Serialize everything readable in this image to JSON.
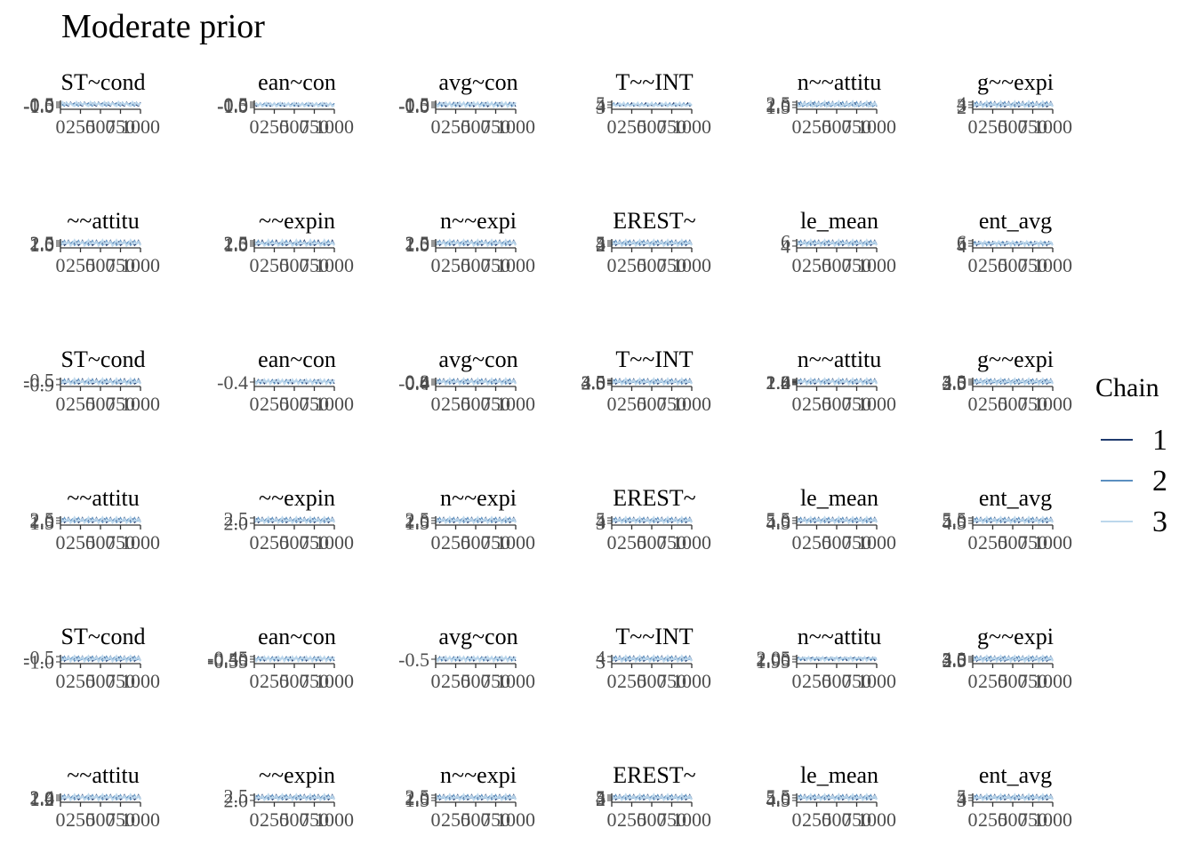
{
  "title": "Moderate prior",
  "legend": {
    "title": "Chain",
    "entries": [
      {
        "label": "1",
        "color": "#1f3a6e"
      },
      {
        "label": "2",
        "color": "#5b8fc0"
      },
      {
        "label": "3",
        "color": "#bcd7ec"
      }
    ]
  },
  "chart_data": {
    "type": "line",
    "kind": "trace plot facet grid",
    "nrow": 6,
    "ncol": 6,
    "x_tick_labels": [
      "0",
      "250",
      "500",
      "750",
      "1000"
    ],
    "panels": [
      {
        "title": "ST~cond",
        "y_ticks": [
          "-1.0",
          "-0.5",
          "0.0",
          "0.5"
        ],
        "y": [
          -0.62,
          -0.66,
          -0.6,
          -0.64,
          -0.7,
          -0.58,
          -0.63
        ]
      },
      {
        "title": "ean~con",
        "y_ticks": [
          "-1.0",
          "-0.5",
          "0.0",
          "0.5"
        ],
        "y": [
          -0.44,
          -0.5,
          -0.46,
          -0.4,
          -0.48,
          -0.43,
          -0.47
        ]
      },
      {
        "title": "avg~con",
        "y_ticks": [
          "-1.0",
          "-0.5",
          "0.0",
          "0.5"
        ],
        "y": [
          -0.58,
          -0.62,
          -0.55,
          -0.6,
          -0.57,
          -0.64,
          -0.59
        ]
      },
      {
        "title": "T~~INT",
        "y_ticks": [
          "3",
          "4",
          "5"
        ],
        "y": [
          3.9,
          4.2,
          4.0,
          4.4,
          3.8,
          4.1,
          4.0
        ]
      },
      {
        "title": "n~~attitu",
        "y_ticks": [
          "1.5",
          "2.0",
          "2.5"
        ],
        "y": [
          2.0,
          2.1,
          1.95,
          2.05,
          2.15,
          1.9,
          2.0
        ]
      },
      {
        "title": "g~~expi",
        "y_ticks": [
          "2",
          "3",
          "4"
        ],
        "y": [
          3.1,
          3.3,
          3.0,
          3.2,
          3.4,
          3.1,
          3.2
        ]
      },
      {
        "title": "~~attitu",
        "y_ticks": [
          "1.0",
          "1.5",
          "2.0",
          "2.5"
        ],
        "y": [
          1.8,
          1.9,
          1.75,
          1.85,
          1.95,
          1.8,
          1.9
        ]
      },
      {
        "title": "~~expin",
        "y_ticks": [
          "1.0",
          "1.5",
          "2.0",
          "2.5"
        ],
        "y": [
          1.7,
          1.8,
          1.65,
          1.75,
          1.9,
          1.7,
          1.8
        ]
      },
      {
        "title": "n~~expi",
        "y_ticks": [
          "1.0",
          "1.5",
          "2.0",
          "2.5"
        ],
        "y": [
          1.9,
          2.0,
          1.85,
          1.95,
          2.05,
          1.9,
          2.0
        ]
      },
      {
        "title": "EREST~",
        "y_ticks": [
          "2",
          "3",
          "4",
          "5"
        ],
        "y": [
          3.5,
          3.7,
          3.4,
          3.6,
          3.8,
          3.5,
          3.6
        ]
      },
      {
        "title": "le_mean",
        "y_ticks": [
          "4",
          "6"
        ],
        "y": [
          5.0,
          5.2,
          4.9,
          5.1,
          5.3,
          5.0,
          5.1
        ]
      },
      {
        "title": "ent_avg",
        "y_ticks": [
          "4",
          "5",
          "6"
        ],
        "y": [
          5.0,
          5.1,
          4.9,
          5.2,
          5.0,
          4.95,
          5.05
        ]
      },
      {
        "title": "ST~cond",
        "y_ticks": [
          "-0.9",
          "-0.5"
        ],
        "y": [
          -0.7,
          -0.65,
          -0.72,
          -0.68,
          -0.62,
          -0.7,
          -0.66
        ]
      },
      {
        "title": "ean~con",
        "y_ticks": [
          "-0.4"
        ],
        "y": [
          -0.4,
          -0.42,
          -0.38,
          -0.41,
          -0.39,
          -0.43,
          -0.4
        ]
      },
      {
        "title": "avg~con",
        "y_ticks": [
          "-0.4",
          "0.0",
          "0.4",
          "0.8"
        ],
        "y": [
          0.1,
          0.2,
          0.05,
          0.15,
          0.25,
          0.1,
          0.18
        ]
      },
      {
        "title": "T~~INT",
        "y_ticks": [
          "2.5",
          "3.0",
          "3.5",
          "4.0",
          "4.5"
        ],
        "y": [
          3.5,
          3.7,
          3.4,
          3.6,
          3.8,
          3.5,
          3.6
        ]
      },
      {
        "title": "n~~attitu",
        "y_ticks": [
          "1.4",
          "1.6",
          "1.8",
          "2.0",
          "2.2",
          "2.4"
        ],
        "y": [
          1.9,
          2.0,
          1.85,
          1.95,
          2.05,
          1.9,
          2.0
        ]
      },
      {
        "title": "g~~expi",
        "y_ticks": [
          "2.5",
          "3.0",
          "3.5",
          "4.0"
        ],
        "y": [
          3.2,
          3.3,
          3.1,
          3.25,
          3.35,
          3.15,
          3.2
        ]
      },
      {
        "title": "~~attitu",
        "y_ticks": [
          "1.5",
          "2.0",
          "2.5"
        ],
        "y": [
          2.0,
          2.1,
          1.95,
          2.05,
          2.15,
          2.0,
          2.05
        ]
      },
      {
        "title": "~~expin",
        "y_ticks": [
          "2.0",
          "2.5"
        ],
        "y": [
          2.2,
          2.3,
          2.15,
          2.25,
          2.35,
          2.2,
          2.25
        ]
      },
      {
        "title": "n~~expi",
        "y_ticks": [
          "1.5",
          "2.0",
          "2.5"
        ],
        "y": [
          2.0,
          2.1,
          1.95,
          2.05,
          2.15,
          2.0,
          2.05
        ]
      },
      {
        "title": "EREST~",
        "y_ticks": [
          "3",
          "4",
          "5"
        ],
        "y": [
          4.0,
          4.2,
          3.9,
          4.1,
          4.3,
          4.0,
          4.1
        ]
      },
      {
        "title": "le_mean",
        "y_ticks": [
          "4.5",
          "5.0",
          "5.5"
        ],
        "y": [
          5.0,
          5.1,
          4.95,
          5.05,
          5.15,
          5.0,
          5.05
        ]
      },
      {
        "title": "ent_avg",
        "y_ticks": [
          "4.5",
          "5.0",
          "5.5"
        ],
        "y": [
          5.0,
          5.1,
          4.95,
          5.05,
          5.15,
          5.0,
          5.05
        ]
      },
      {
        "title": "ST~cond",
        "y_ticks": [
          "-1.0",
          "-0.5"
        ],
        "y": [
          -0.75,
          -0.7,
          -0.78,
          -0.72,
          -0.68,
          -0.76,
          -0.73
        ]
      },
      {
        "title": "ean~con",
        "y_ticks": [
          "-0.55",
          "-0.50",
          "-0.45"
        ],
        "y": [
          -0.5,
          -0.52,
          -0.48,
          -0.51,
          -0.49,
          -0.53,
          -0.5
        ]
      },
      {
        "title": "avg~con",
        "y_ticks": [
          "-0.5"
        ],
        "y": [
          -0.5,
          -0.52,
          -0.48,
          -0.51,
          -0.49,
          -0.53,
          -0.5
        ]
      },
      {
        "title": "T~~INT",
        "y_ticks": [
          "3",
          "4"
        ],
        "y": [
          3.5,
          3.6,
          3.45,
          3.55,
          3.65,
          3.5,
          3.55
        ]
      },
      {
        "title": "n~~attitu",
        "y_ticks": [
          "1.95",
          "2.00",
          "2.05"
        ],
        "y": [
          2.0,
          2.01,
          1.99,
          2.02,
          1.98,
          2.0,
          2.01
        ]
      },
      {
        "title": "g~~expi",
        "y_ticks": [
          "2.5",
          "3.0",
          "3.5",
          "4.0"
        ],
        "y": [
          3.2,
          3.3,
          3.1,
          3.25,
          3.35,
          3.15,
          3.2
        ]
      },
      {
        "title": "~~attitu",
        "y_ticks": [
          "1.2",
          "1.6",
          "2.0",
          "2.4"
        ],
        "y": [
          1.8,
          1.9,
          1.75,
          1.85,
          1.95,
          1.8,
          1.9
        ]
      },
      {
        "title": "~~expin",
        "y_ticks": [
          "2.0",
          "2.5"
        ],
        "y": [
          2.2,
          2.3,
          2.15,
          2.25,
          2.35,
          2.2,
          2.25
        ]
      },
      {
        "title": "n~~expi",
        "y_ticks": [
          "1.5",
          "2.0",
          "2.5"
        ],
        "y": [
          2.0,
          2.1,
          1.95,
          2.05,
          2.15,
          2.0,
          2.05
        ]
      },
      {
        "title": "EREST~",
        "y_ticks": [
          "2",
          "3",
          "4",
          "5"
        ],
        "y": [
          3.5,
          3.7,
          3.4,
          3.6,
          3.8,
          3.5,
          3.6
        ]
      },
      {
        "title": "le_mean",
        "y_ticks": [
          "4.5",
          "5.0",
          "5.5"
        ],
        "y": [
          5.0,
          5.1,
          4.95,
          5.05,
          5.15,
          5.0,
          5.05
        ]
      },
      {
        "title": "ent_avg",
        "y_ticks": [
          "3",
          "4",
          "5"
        ],
        "y": [
          4.0,
          4.2,
          3.9,
          4.1,
          4.3,
          4.0,
          4.1
        ]
      }
    ]
  }
}
